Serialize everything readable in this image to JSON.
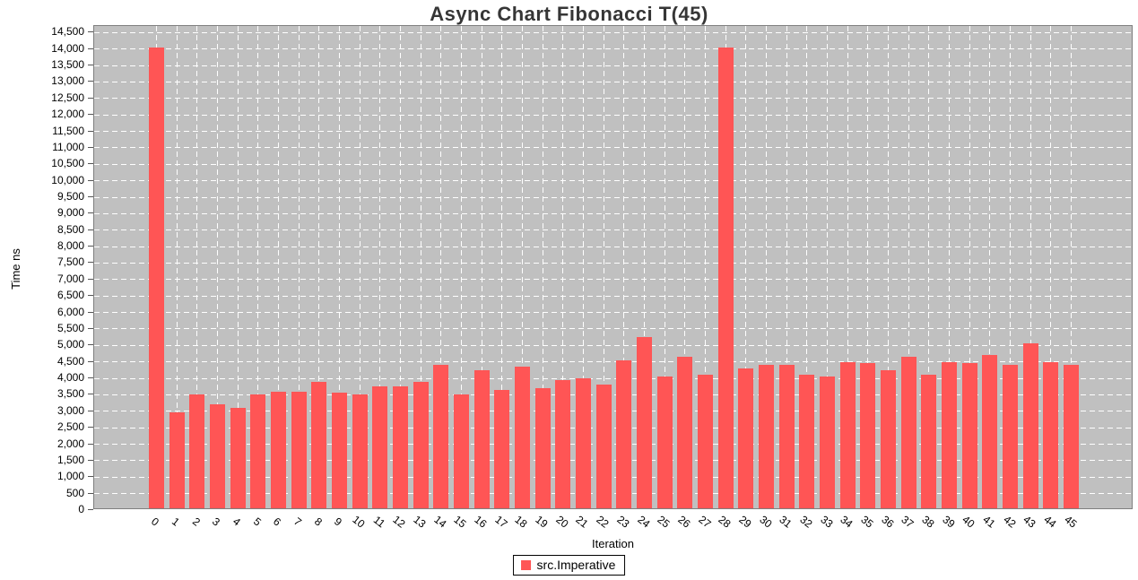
{
  "chart_data": {
    "type": "bar",
    "title": "Async Chart Fibonacci T(45)",
    "xlabel": "Iteration",
    "ylabel": "Time ns",
    "legend_position": "bottom",
    "grid": true,
    "plot_bg_color": "#c0c0c0",
    "gridline_color": "#ffffff",
    "bar_color": "#ff5555",
    "ylim": [
      0,
      14700
    ],
    "ytick_step": 500,
    "yticks": [
      0,
      500,
      1000,
      1500,
      2000,
      2500,
      3000,
      3500,
      4000,
      4500,
      5000,
      5500,
      6000,
      6500,
      7000,
      7500,
      8000,
      8500,
      9000,
      9500,
      10000,
      10500,
      11000,
      11500,
      12000,
      12500,
      13000,
      13500,
      14000,
      14500
    ],
    "categories": [
      "0",
      "1",
      "2",
      "3",
      "4",
      "5",
      "6",
      "7",
      "8",
      "9",
      "10",
      "11",
      "12",
      "13",
      "14",
      "15",
      "16",
      "17",
      "18",
      "19",
      "20",
      "21",
      "22",
      "23",
      "24",
      "25",
      "26",
      "27",
      "28",
      "29",
      "30",
      "31",
      "32",
      "33",
      "34",
      "35",
      "36",
      "37",
      "38",
      "39",
      "40",
      "41",
      "42",
      "43",
      "44",
      "45"
    ],
    "series": [
      {
        "name": "src.Imperative",
        "color": "#ff5555",
        "values": [
          14000,
          2900,
          3450,
          3150,
          3050,
          3450,
          3550,
          3550,
          3850,
          3500,
          3450,
          3700,
          3700,
          3850,
          4350,
          3450,
          4200,
          3600,
          4300,
          3650,
          3900,
          3950,
          3750,
          4500,
          5200,
          4000,
          4600,
          4050,
          14000,
          4250,
          4350,
          4350,
          4050,
          4000,
          4450,
          4400,
          4200,
          4600,
          4050,
          4450,
          4400,
          4650,
          4350,
          5000,
          4450,
          4350
        ]
      }
    ]
  }
}
